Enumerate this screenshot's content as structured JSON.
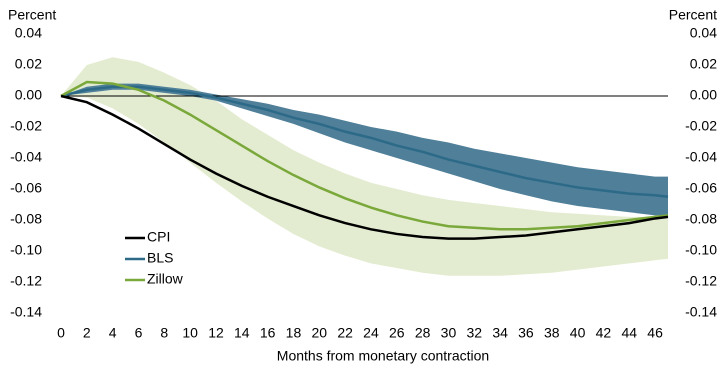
{
  "chart_data": {
    "type": "line",
    "x_label": "Months from monetary contraction",
    "y_label": "Percent",
    "y2_label": "Percent",
    "x": [
      0,
      2,
      4,
      6,
      8,
      10,
      12,
      14,
      16,
      18,
      20,
      22,
      24,
      26,
      28,
      30,
      32,
      34,
      36,
      38,
      40,
      42,
      44,
      46,
      47
    ],
    "xlim": [
      0,
      47
    ],
    "xticks": [
      0,
      2,
      4,
      6,
      8,
      10,
      12,
      14,
      16,
      18,
      20,
      22,
      24,
      26,
      28,
      30,
      32,
      34,
      36,
      38,
      40,
      42,
      44,
      46
    ],
    "ylim": [
      -0.14,
      0.04
    ],
    "yticks": [
      {
        "value": 0.04,
        "label": "0.04"
      },
      {
        "value": 0.02,
        "label": "0.02"
      },
      {
        "value": 0,
        "label": "0.00"
      },
      {
        "value": -0.02,
        "label": "-0.02"
      },
      {
        "value": -0.04,
        "label": "-0.04"
      },
      {
        "value": -0.06,
        "label": "-0.06"
      },
      {
        "value": -0.08,
        "label": "-0.08"
      },
      {
        "value": -0.1,
        "label": "-0.10"
      },
      {
        "value": -0.12,
        "label": "-0.12"
      },
      {
        "value": -0.14,
        "label": "-0.14"
      }
    ],
    "y2lim": [
      -0.14,
      0.04
    ],
    "y2ticks": [
      {
        "value": 0.04,
        "label": "0.04"
      },
      {
        "value": 0.02,
        "label": "0.02"
      },
      {
        "value": 0,
        "label": "0.00"
      },
      {
        "value": -0.02,
        "label": "-0.02"
      },
      {
        "value": -0.04,
        "label": "-0.04"
      },
      {
        "value": -0.06,
        "label": "-0.06"
      },
      {
        "value": -0.08,
        "label": "-0.08"
      },
      {
        "value": -0.1,
        "label": "-0.10"
      },
      {
        "value": -0.12,
        "label": "-0.12"
      },
      {
        "value": -0.14,
        "label": "-0.14"
      }
    ],
    "legend": "lower-left",
    "series": [
      {
        "name": "CPI",
        "color": "#000000",
        "values": [
          0,
          -0.004,
          -0.012,
          -0.021,
          -0.031,
          -0.041,
          -0.05,
          -0.058,
          -0.065,
          -0.071,
          -0.077,
          -0.082,
          -0.086,
          -0.089,
          -0.091,
          -0.092,
          -0.092,
          -0.091,
          -0.09,
          -0.088,
          -0.086,
          -0.084,
          -0.082,
          -0.079,
          -0.078
        ]
      },
      {
        "name": "BLS",
        "color": "#2c6a88",
        "band_color": "#4f7f99",
        "values": [
          0,
          0.004,
          0.006,
          0.006,
          0.004,
          0.002,
          -0.001,
          -0.005,
          -0.009,
          -0.014,
          -0.018,
          -0.023,
          -0.027,
          -0.032,
          -0.036,
          -0.041,
          -0.045,
          -0.049,
          -0.053,
          -0.056,
          -0.059,
          -0.061,
          -0.063,
          -0.064,
          -0.065
        ],
        "upper": [
          0,
          0.006,
          0.008,
          0.008,
          0.006,
          0.004,
          0.001,
          -0.002,
          -0.005,
          -0.009,
          -0.012,
          -0.016,
          -0.02,
          -0.023,
          -0.027,
          -0.03,
          -0.034,
          -0.037,
          -0.04,
          -0.043,
          -0.046,
          -0.048,
          -0.05,
          -0.052,
          -0.052
        ],
        "lower": [
          0,
          0.002,
          0.004,
          0.004,
          0.002,
          0,
          -0.003,
          -0.008,
          -0.013,
          -0.018,
          -0.024,
          -0.03,
          -0.035,
          -0.04,
          -0.045,
          -0.05,
          -0.055,
          -0.06,
          -0.064,
          -0.068,
          -0.071,
          -0.073,
          -0.075,
          -0.077,
          -0.077
        ]
      },
      {
        "name": "Zillow",
        "color": "#7aa83a",
        "band_color": "#e3ecd0",
        "values": [
          0,
          0.009,
          0.008,
          0.004,
          -0.003,
          -0.012,
          -0.022,
          -0.032,
          -0.042,
          -0.051,
          -0.059,
          -0.066,
          -0.072,
          -0.077,
          -0.081,
          -0.084,
          -0.085,
          -0.086,
          -0.086,
          -0.085,
          -0.084,
          -0.082,
          -0.08,
          -0.078,
          -0.077
        ],
        "upper": [
          0,
          0.02,
          0.025,
          0.022,
          0.015,
          0.007,
          -0.003,
          -0.015,
          -0.025,
          -0.035,
          -0.043,
          -0.05,
          -0.056,
          -0.06,
          -0.064,
          -0.067,
          -0.069,
          -0.071,
          -0.073,
          -0.075,
          -0.076,
          -0.077,
          -0.078,
          -0.078,
          -0.078
        ],
        "lower": [
          0,
          -0.001,
          -0.008,
          -0.018,
          -0.03,
          -0.043,
          -0.056,
          -0.068,
          -0.079,
          -0.089,
          -0.097,
          -0.103,
          -0.108,
          -0.111,
          -0.114,
          -0.116,
          -0.116,
          -0.116,
          -0.115,
          -0.114,
          -0.112,
          -0.11,
          -0.108,
          -0.106,
          -0.105
        ]
      }
    ]
  }
}
